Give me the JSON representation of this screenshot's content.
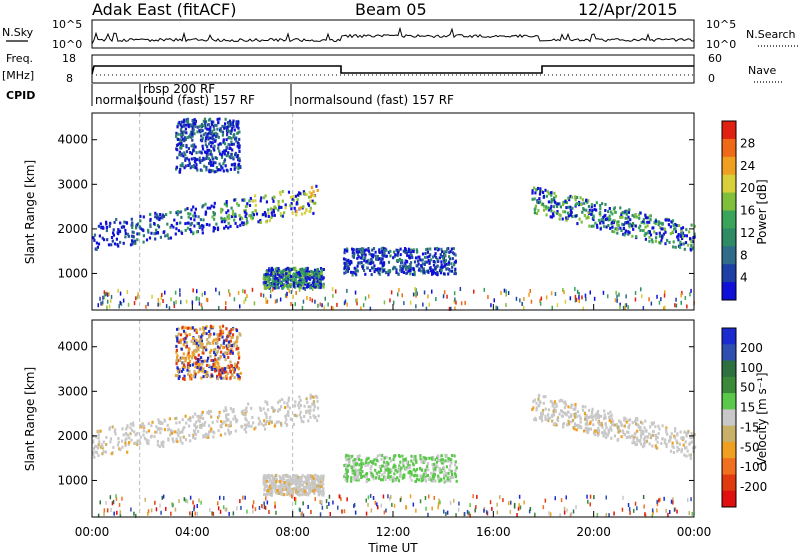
{
  "header": {
    "station": "Adak East (fitACF)",
    "beam": "Beam 05",
    "date": "12/Apr/2015"
  },
  "strips": {
    "nsky_label": "N.Sky",
    "nsky_ticks": [
      "10^5",
      "10^0"
    ],
    "nsearch_label": "N.Search",
    "nsearch_ticks": [
      "10^5",
      "10^0"
    ],
    "freq_label_line1": "Freq.",
    "freq_label_line2": "[MHz]",
    "freq_ticks": [
      "18",
      "8"
    ],
    "nave_label": "Nave",
    "nave_ticks": [
      "60",
      "0"
    ],
    "cpid_label": "CPID",
    "cpid_segments": [
      {
        "text": "normalsound (fast) 157 RF"
      },
      {
        "text": "rbsp 200 RF"
      },
      {
        "text": "normalsound (fast) 157 RF"
      }
    ]
  },
  "colors": {
    "power": [
      "#1010d8",
      "#1e3fa6",
      "#2f6c8a",
      "#2f8a66",
      "#3aa55a",
      "#7fbf3a",
      "#d8d03a",
      "#f0a020",
      "#ef6a16",
      "#e02010"
    ],
    "velocity": [
      "#1a2bd0",
      "#2f4fb0",
      "#2e7040",
      "#3a8a3a",
      "#5ac84a",
      "#c8c8c8",
      "#c8b068",
      "#f0a020",
      "#f07020",
      "#e03a10",
      "#e01010"
    ]
  },
  "chart_data": [
    {
      "type": "heatmap",
      "title": "",
      "quantity": "Power",
      "xlabel": "Time UT",
      "ylabel": "Slant Range [km]",
      "xlim_hours": [
        0,
        24
      ],
      "ylim_km": [
        180,
        4600
      ],
      "x_ticks": [
        "00:00",
        "04:00",
        "08:00",
        "12:00",
        "16:00",
        "20:00",
        "00:00"
      ],
      "y_ticks": [
        1000,
        2000,
        3000,
        4000
      ],
      "colorbar": {
        "label": "Power [dB]",
        "ticks": [
          4,
          8,
          12,
          16,
          20,
          24,
          28
        ]
      },
      "echo_regions": [
        {
          "t": [
            0.0,
            9.0
          ],
          "r": [
            1600,
            2900
          ],
          "desc": "main band 00-09 UT, rising from ~1800 to ~2600 km",
          "peak_dB": 28
        },
        {
          "t": [
            3.3,
            5.9
          ],
          "r": [
            3300,
            4500
          ],
          "desc": "upper echoes 03:30-06:00",
          "peak_dB": 8
        },
        {
          "t": [
            6.8,
            9.2
          ],
          "r": [
            700,
            1150
          ],
          "desc": "near-range echoes 07-09 UT",
          "peak_dB": 20
        },
        {
          "t": [
            10.0,
            14.5
          ],
          "r": [
            1000,
            1600
          ],
          "desc": "band 10-14:30 UT",
          "peak_dB": 16
        },
        {
          "t": [
            17.5,
            24.0
          ],
          "r": [
            1300,
            2900
          ],
          "desc": "evening band 17:30-24 UT",
          "peak_dB": 20
        }
      ]
    },
    {
      "type": "heatmap",
      "title": "",
      "quantity": "Velocity",
      "xlabel": "Time UT",
      "ylabel": "Slant Range [km]",
      "xlim_hours": [
        0,
        24
      ],
      "ylim_km": [
        180,
        4600
      ],
      "x_ticks": [
        "00:00",
        "04:00",
        "08:00",
        "12:00",
        "16:00",
        "20:00",
        "00:00"
      ],
      "y_ticks": [
        1000,
        2000,
        3000,
        4000
      ],
      "colorbar": {
        "label": "Velocity [m s⁻¹]",
        "ticks": [
          200,
          100,
          50,
          15,
          -15,
          -50,
          -100,
          -200
        ]
      },
      "echo_regions": [
        {
          "t": [
            0.0,
            9.0
          ],
          "r": [
            1600,
            2900
          ],
          "desc": "mostly ground scatter (grey) with orange patches",
          "velocity_ms": -50
        },
        {
          "t": [
            3.3,
            5.9
          ],
          "r": [
            3300,
            4500
          ],
          "desc": "mixed orange/red",
          "velocity_ms": -100
        },
        {
          "t": [
            6.8,
            9.2
          ],
          "r": [
            700,
            1150
          ],
          "desc": "grey",
          "velocity_ms": 0
        },
        {
          "t": [
            10.0,
            14.5
          ],
          "r": [
            1000,
            1600
          ],
          "desc": "green (positive)",
          "velocity_ms": 50
        },
        {
          "t": [
            17.5,
            24.0
          ],
          "r": [
            1300,
            2900
          ],
          "desc": "grey",
          "velocity_ms": 0
        }
      ]
    }
  ]
}
